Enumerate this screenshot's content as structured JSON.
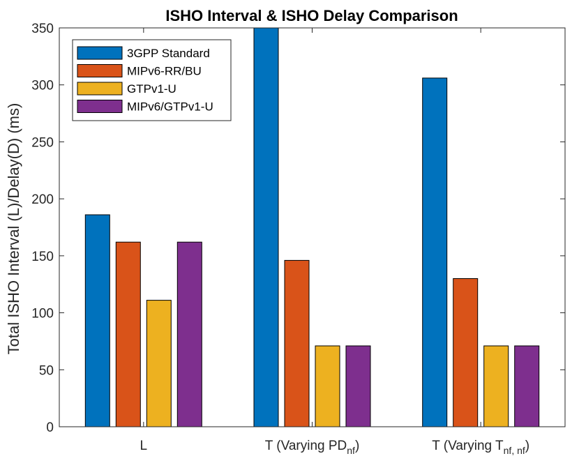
{
  "chart_data": {
    "type": "bar",
    "title": "ISHO Interval & ISHO Delay Comparison",
    "xlabel": "",
    "ylabel": "Total ISHO Interval (L)/Delay(D) (ms)",
    "ylim": [
      0,
      350
    ],
    "yticks": [
      0,
      50,
      100,
      150,
      200,
      250,
      300,
      350
    ],
    "grid": false,
    "legend_position": "top-left",
    "categories": [
      {
        "main": "L",
        "sub": "",
        "tail": ""
      },
      {
        "main": "T (Varying PD",
        "sub": "nf",
        "tail": ")"
      },
      {
        "main": "T (Varying T",
        "sub": "nf, nf",
        "tail": ")"
      }
    ],
    "series": [
      {
        "name": "3GPP Standard",
        "color": "#0072BD",
        "values": [
          186,
          350,
          306
        ]
      },
      {
        "name": "MIPv6-RR/BU",
        "color": "#D95319",
        "values": [
          162,
          146,
          130
        ]
      },
      {
        "name": "GTPv1-U",
        "color": "#EDB120",
        "values": [
          111,
          71,
          71
        ]
      },
      {
        "name": "MIPv6/GTPv1-U",
        "color": "#7E2F8E",
        "values": [
          162,
          71,
          71
        ]
      }
    ]
  }
}
